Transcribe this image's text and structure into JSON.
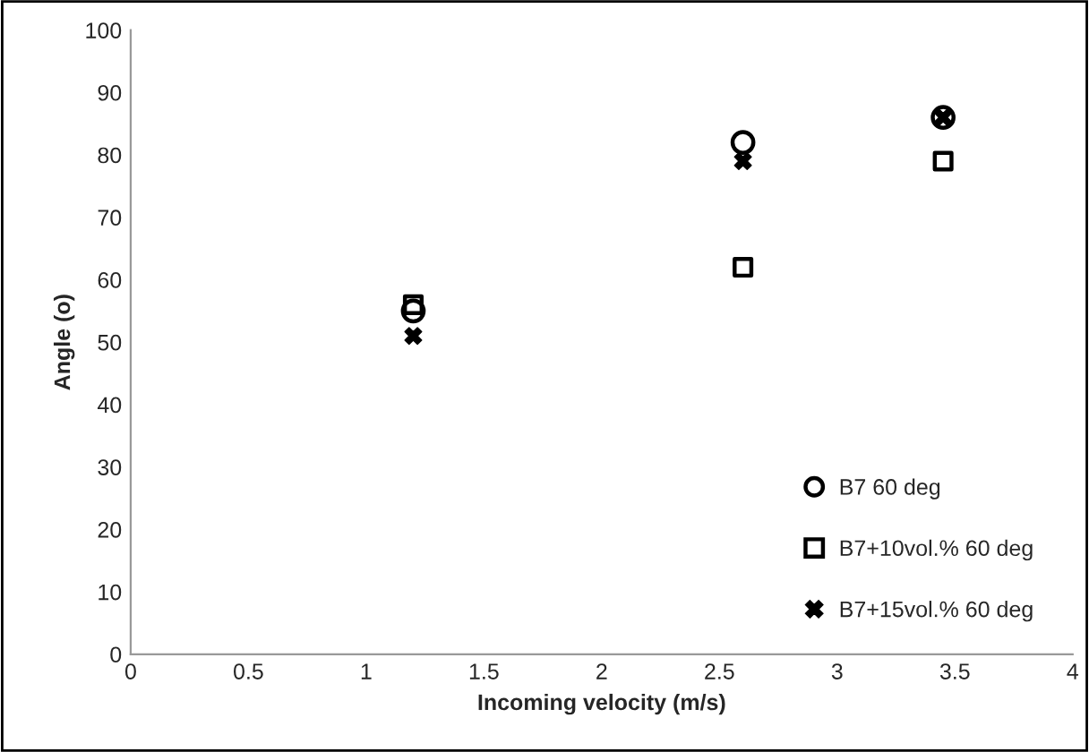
{
  "chart_data": {
    "type": "scatter",
    "xlabel": "Incoming velocity (m/s)",
    "ylabel": "Angle (o)",
    "x": [
      1.2,
      2.6,
      3.45
    ],
    "series": [
      {
        "name": "B7 60 deg",
        "color": "#000000",
        "marker": "circle",
        "values": [
          55,
          82,
          86
        ]
      },
      {
        "name": "B7+10vol.% 60 deg",
        "color": "#000000",
        "marker": "square",
        "values": [
          56,
          62,
          79
        ]
      },
      {
        "name": "B7+15vol.% 60 deg",
        "color": "#000000",
        "marker": "cross",
        "values": [
          51,
          79,
          86
        ]
      }
    ],
    "xlim": [
      0,
      4
    ],
    "xticks": [
      0,
      0.5,
      1,
      1.5,
      2,
      2.5,
      3,
      3.5,
      4
    ],
    "ylim": [
      0,
      100
    ],
    "yticks": [
      0,
      10,
      20,
      30,
      40,
      50,
      60,
      70,
      80,
      90,
      100
    ],
    "grid": false,
    "legend": "bottom right"
  }
}
